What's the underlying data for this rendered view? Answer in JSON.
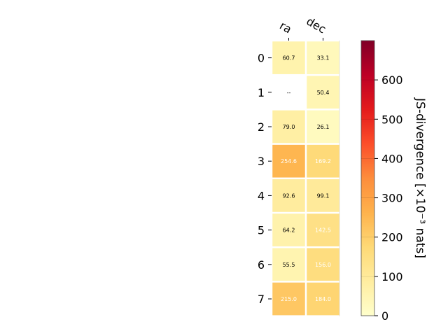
{
  "chart_data": {
    "type": "heatmap",
    "columns": [
      "ra",
      "dec"
    ],
    "rows": [
      "0",
      "1",
      "2",
      "3",
      "4",
      "5",
      "6",
      "7"
    ],
    "values": [
      [
        60.7,
        33.1
      ],
      [
        null,
        50.4
      ],
      [
        79.0,
        26.1
      ],
      [
        254.6,
        169.2
      ],
      [
        92.6,
        99.1
      ],
      [
        64.2,
        142.5
      ],
      [
        55.5,
        156.0
      ],
      [
        215.0,
        184.0
      ]
    ],
    "cell_labels": [
      [
        "60.7",
        "33.1"
      ],
      [
        "--",
        "50.4"
      ],
      [
        "79.0",
        "26.1"
      ],
      [
        "254.6",
        "169.2"
      ],
      [
        "92.6",
        "99.1"
      ],
      [
        "64.2",
        "142.5"
      ],
      [
        "55.5",
        "156.0"
      ],
      [
        "215.0",
        "184.0"
      ]
    ],
    "colorbar": {
      "label": "JS-divergence [×10⁻³ nats]",
      "range": [
        0,
        700
      ],
      "ticks": [
        0,
        100,
        200,
        300,
        400,
        500,
        600
      ],
      "colormap": "YlOrRd",
      "stops": [
        "#ffffcc",
        "#ffeda0",
        "#fed976",
        "#feb24c",
        "#fd8d3c",
        "#fc4e2a",
        "#e31a1c",
        "#bd0026",
        "#800026"
      ]
    }
  }
}
